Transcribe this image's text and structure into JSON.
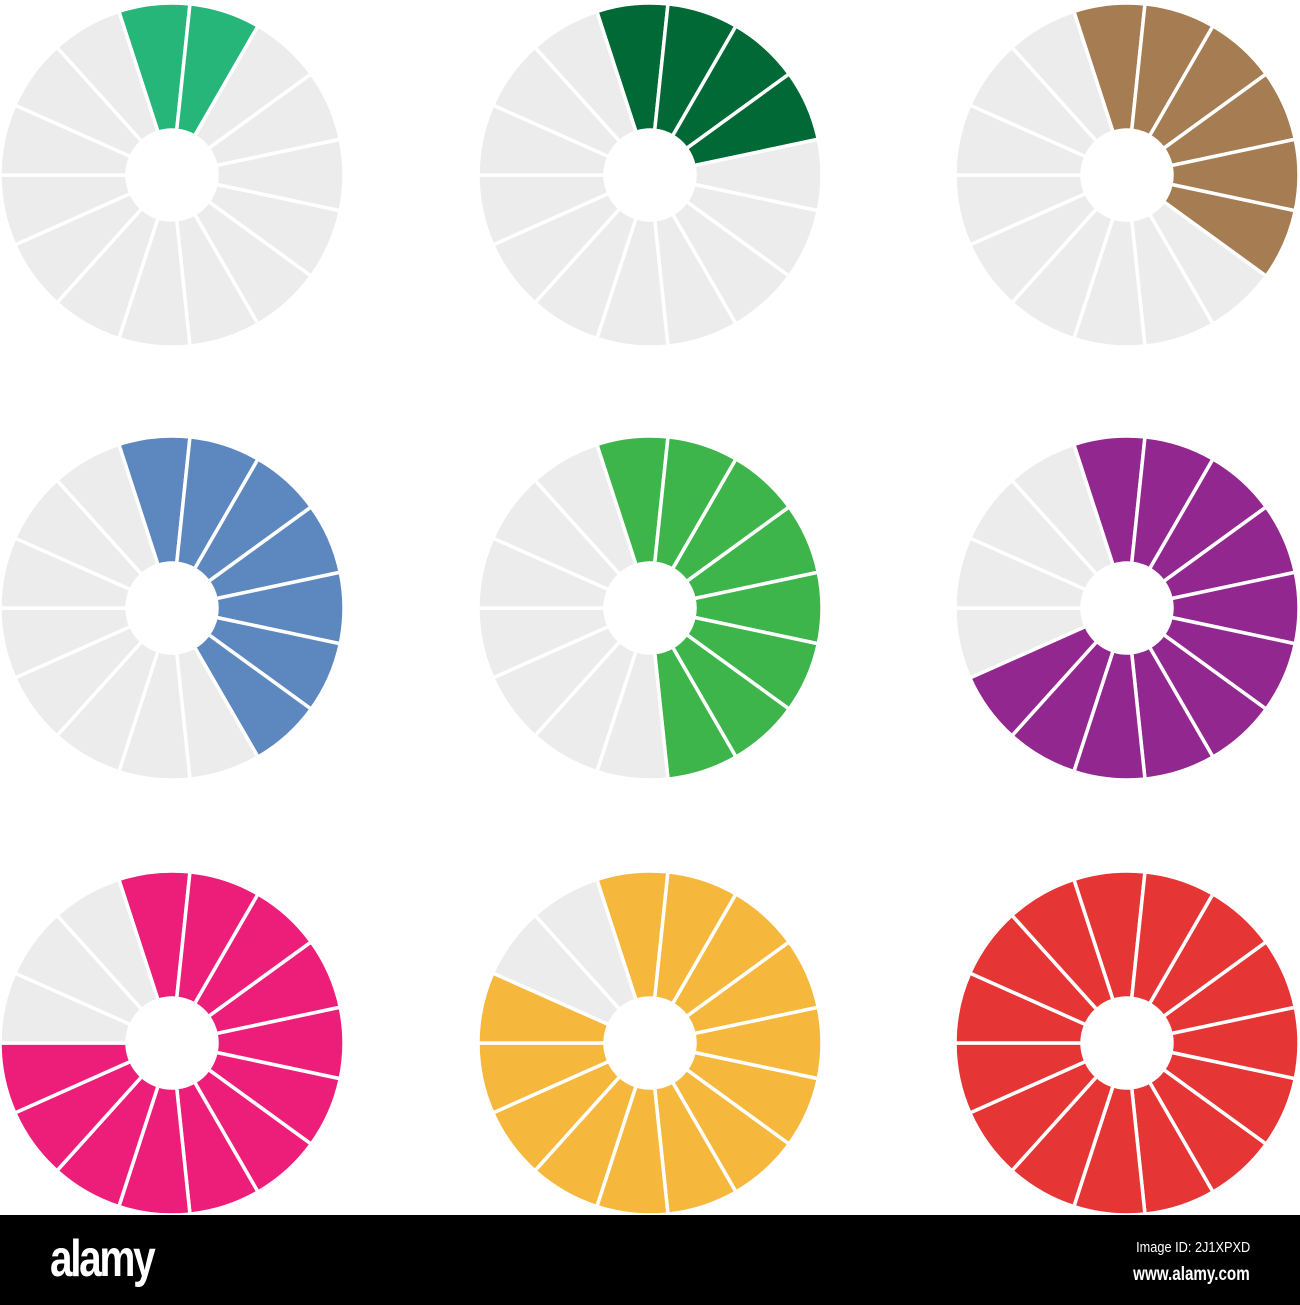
{
  "segments_per_wheel": 15,
  "empty_color": "#ececec",
  "wheels": [
    {
      "filled": 2,
      "color": "#27b67a"
    },
    {
      "filled": 4,
      "color": "#006935"
    },
    {
      "filled": 6,
      "color": "#a67c52"
    },
    {
      "filled": 7,
      "color": "#5c88bf"
    },
    {
      "filled": 8,
      "color": "#3db54a"
    },
    {
      "filled": 11,
      "color": "#92278f"
    },
    {
      "filled": 12,
      "color": "#ed1e7a"
    },
    {
      "filled": 13,
      "color": "#f5b83d"
    },
    {
      "filled": 15,
      "color": "#e63535"
    }
  ],
  "footer": {
    "logo": "alamy",
    "image_id": "Image ID: 2J1XPXD",
    "site": "www.alamy.com"
  }
}
